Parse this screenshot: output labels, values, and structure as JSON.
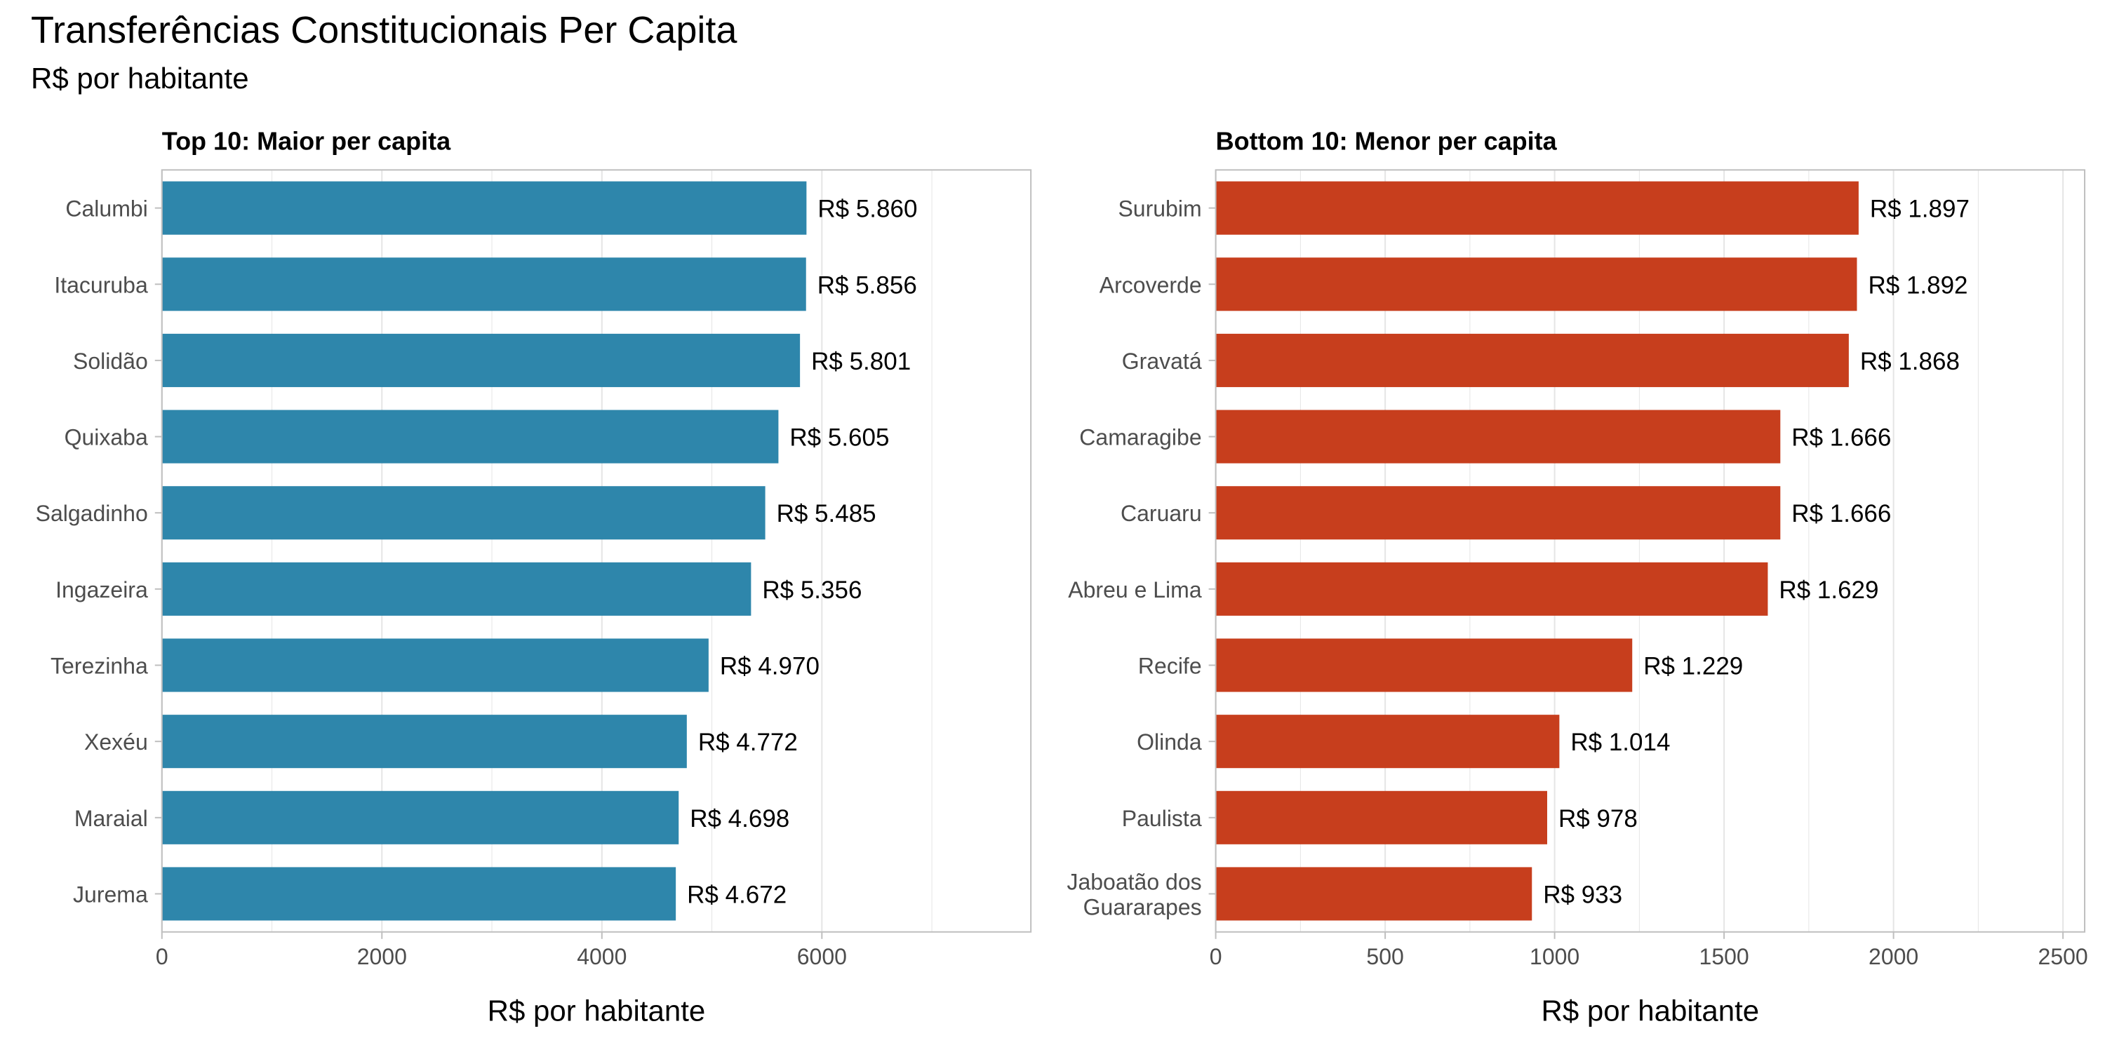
{
  "title": "Transferências Constitucionais Per Capita",
  "subtitle": "R$ por habitante",
  "colors": {
    "top": "#2E86AB",
    "bottom": "#C73E1D",
    "grid": "#E5E5E5",
    "frame": "#BFBFBF",
    "tick_text": "#4D4D4D"
  },
  "chart_data": [
    {
      "type": "bar",
      "orientation": "horizontal",
      "title": "Top 10: Maior per capita",
      "xlabel": "R$ por habitante",
      "ylabel": "",
      "xlim": [
        0,
        7900
      ],
      "xticks": [
        0,
        2000,
        4000,
        6000
      ],
      "grid": true,
      "color": "#2E86AB",
      "categories": [
        "Calumbi",
        "Itacuruba",
        "Solidão",
        "Quixaba",
        "Salgadinho",
        "Ingazeira",
        "Terezinha",
        "Xexéu",
        "Maraial",
        "Jurema"
      ],
      "values": [
        5860,
        5856,
        5801,
        5605,
        5485,
        5356,
        4970,
        4772,
        4698,
        4672
      ],
      "labels": [
        "R$ 5.860",
        "R$ 5.856",
        "R$ 5.801",
        "R$ 5.605",
        "R$ 5.485",
        "R$ 5.356",
        "R$ 4.970",
        "R$ 4.772",
        "R$ 4.698",
        "R$ 4.672"
      ]
    },
    {
      "type": "bar",
      "orientation": "horizontal",
      "title": "Bottom 10: Menor per capita",
      "xlabel": "R$ por habitante",
      "ylabel": "",
      "xlim": [
        0,
        2564
      ],
      "xticks": [
        0,
        500,
        1000,
        1500,
        2000,
        2500
      ],
      "grid": true,
      "color": "#C73E1D",
      "categories": [
        "Surubim",
        "Arcoverde",
        "Gravatá",
        "Camaragibe",
        "Caruaru",
        "Abreu e Lima",
        "Recife",
        "Olinda",
        "Paulista",
        "Jaboatão dos\nGuararapes"
      ],
      "values": [
        1897,
        1892,
        1868,
        1666,
        1666,
        1629,
        1229,
        1014,
        978,
        933
      ],
      "labels": [
        "R$ 1.897",
        "R$ 1.892",
        "R$ 1.868",
        "R$ 1.666",
        "R$ 1.666",
        "R$ 1.629",
        "R$ 1.229",
        "R$ 1.014",
        "R$   978",
        "R$   933"
      ]
    }
  ]
}
